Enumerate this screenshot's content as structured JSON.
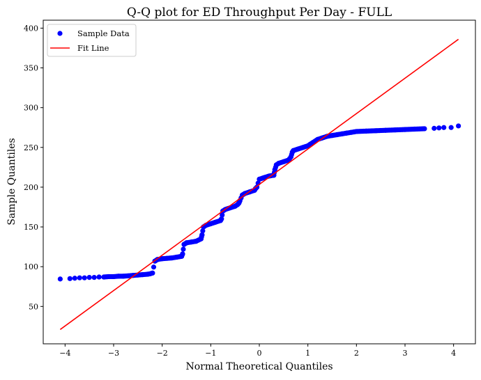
{
  "chart_data": {
    "type": "scatter",
    "title": "Q-Q plot for ED Throughput Per Day - FULL",
    "xlabel": "Normal Theoretical Quantiles",
    "ylabel": "Sample Quantiles",
    "xlim": [
      -4.45,
      4.45
    ],
    "ylim": [
      3,
      410
    ],
    "xticks": [
      -4,
      -3,
      -2,
      -1,
      0,
      1,
      2,
      3,
      4
    ],
    "xtick_labels": [
      "−4",
      "−3",
      "−2",
      "−1",
      "0",
      "1",
      "2",
      "3",
      "4"
    ],
    "yticks": [
      50,
      100,
      150,
      200,
      250,
      300,
      350,
      400
    ],
    "ytick_labels": [
      "50",
      "100",
      "150",
      "200",
      "250",
      "300",
      "350",
      "400"
    ],
    "grid": false,
    "legend_position": "upper-left",
    "series": [
      {
        "name": "Sample Data",
        "kind": "points",
        "color": "#0000ff",
        "x": [
          -4.1,
          -3.9,
          -3.8,
          -3.7,
          -3.6,
          -3.5,
          -3.4,
          -3.3,
          -3.2,
          -3.1,
          -3.0,
          -2.9,
          -2.8,
          -2.7,
          -2.6,
          -2.5,
          -2.4,
          -2.3,
          -2.25,
          -2.2,
          -2.15,
          -2.1,
          -2.0,
          -1.9,
          -1.8,
          -1.7,
          -1.6,
          -1.58,
          -1.55,
          -1.5,
          -1.4,
          -1.3,
          -1.2,
          -1.18,
          -1.15,
          -1.1,
          -1.0,
          -0.9,
          -0.8,
          -0.78,
          -0.75,
          -0.7,
          -0.6,
          -0.5,
          -0.45,
          -0.42,
          -0.4,
          -0.35,
          -0.3,
          -0.2,
          -0.1,
          -0.08,
          -0.05,
          0.0,
          0.1,
          0.2,
          0.3,
          0.32,
          0.35,
          0.4,
          0.5,
          0.6,
          0.65,
          0.68,
          0.7,
          0.8,
          0.9,
          1.0,
          1.05,
          1.1,
          1.2,
          1.3,
          1.4,
          1.5,
          1.6,
          1.7,
          1.8,
          1.9,
          2.0,
          2.2,
          2.4,
          2.6,
          2.8,
          3.0,
          3.2,
          3.4,
          3.6,
          3.7,
          3.8,
          3.95,
          4.1
        ],
        "y": [
          84.5,
          85,
          85.5,
          86,
          86,
          86.5,
          86.5,
          87,
          87,
          87.5,
          87.5,
          88,
          88,
          88.5,
          89,
          89.5,
          90,
          90.5,
          91,
          92,
          107,
          109,
          110,
          110.5,
          111,
          112,
          113,
          116,
          128,
          130,
          131,
          132,
          135,
          140,
          150,
          152,
          154,
          156,
          158,
          160,
          170,
          172,
          174,
          176,
          178,
          180,
          183,
          190,
          192,
          194,
          196,
          198,
          200,
          210,
          212,
          214,
          215,
          222,
          228,
          230,
          232,
          234,
          238,
          244,
          246,
          248,
          250,
          252,
          254,
          256,
          260,
          262,
          264,
          265,
          266,
          267,
          268,
          269,
          270,
          270.5,
          271,
          271.5,
          272,
          272.5,
          273,
          273.5,
          274,
          274.5,
          275,
          275,
          277
        ]
      },
      {
        "name": "Fit Line",
        "kind": "line",
        "color": "#ff0000",
        "x": [
          -4.1,
          4.1
        ],
        "y": [
          21,
          386
        ]
      }
    ]
  }
}
